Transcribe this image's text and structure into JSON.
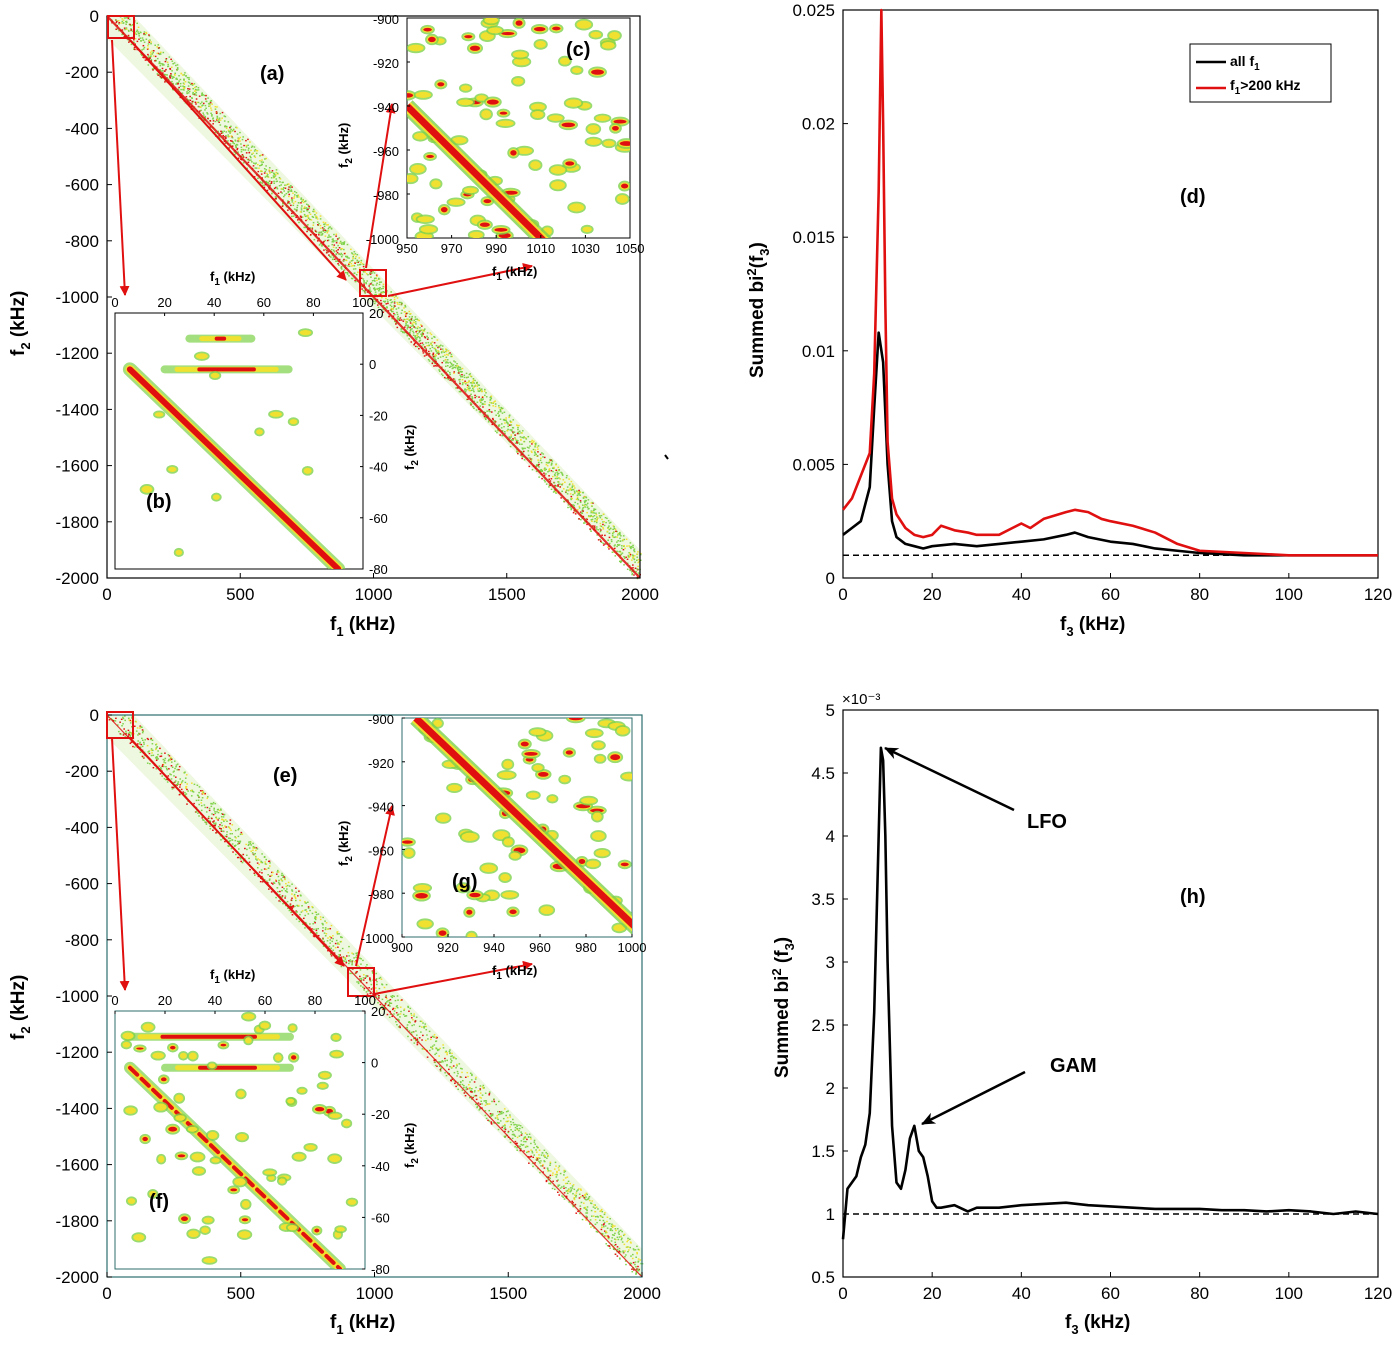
{
  "colors": {
    "red": "#e01010",
    "green": "#7ed24a",
    "yellow": "#f0e030",
    "black": "#000000",
    "teal_frame": "#2c6e6e"
  },
  "chart_data": [
    {
      "id": "top_bicoherence",
      "type": "heatmap",
      "panel_label": "(a)",
      "xlabel": "f1 (kHz)",
      "ylabel": "f2 (kHz)",
      "xlim": [
        0,
        2000
      ],
      "ylim": [
        -2000,
        0
      ],
      "xticks": [
        "0",
        "500",
        "1000",
        "1500",
        "2000"
      ],
      "yticks": [
        "0",
        "-200",
        "-400",
        "-600",
        "-800",
        "-1000",
        "-1200",
        "-1400",
        "-1600",
        "-1800",
        "-2000"
      ],
      "description_values": {
        "band_line": "f2 = -f1"
      },
      "insets": [
        {
          "panel_label": "(b)",
          "xlabel": "f1 (kHz)",
          "ylabel": "f2 (kHz)",
          "xlim": [
            0,
            100
          ],
          "ylim": [
            -80,
            20
          ],
          "xticks": [
            "0",
            "20",
            "40",
            "60",
            "80",
            "100"
          ],
          "yticks": [
            "20",
            "0",
            "-20",
            "-40",
            "-60",
            "-80"
          ]
        },
        {
          "panel_label": "(c)",
          "xlabel": "f1 (kHz)",
          "ylabel": "f2 (kHz)",
          "xlim": [
            950,
            1050
          ],
          "ylim": [
            -1000,
            -900
          ],
          "xticks": [
            "950",
            "970",
            "990",
            "1010",
            "1030",
            "1050"
          ],
          "yticks": [
            "-900",
            "-920",
            "-940",
            "-960",
            "-980",
            "-1000"
          ]
        }
      ]
    },
    {
      "id": "top_summed",
      "type": "line",
      "panel_label": "(d)",
      "xlabel": "f3 (kHz)",
      "ylabel": "Summed bi2(f3)",
      "xlim": [
        0,
        120
      ],
      "ylim": [
        0,
        0.025
      ],
      "xticks": [
        "0",
        "20",
        "40",
        "60",
        "80",
        "100",
        "120"
      ],
      "yticks": [
        "0",
        "0.005",
        "0.01",
        "0.015",
        "0.02",
        "0.025"
      ],
      "baseline": 0.001,
      "legend_position": "top-right",
      "series": [
        {
          "name": "all f1",
          "color": "#000000",
          "x": [
            0,
            2,
            4,
            6,
            7,
            8,
            9,
            10,
            11,
            12,
            14,
            16,
            18,
            20,
            25,
            30,
            35,
            40,
            45,
            50,
            52,
            55,
            60,
            65,
            70,
            75,
            80,
            90,
            100,
            110,
            120
          ],
          "y": [
            0.0019,
            0.0022,
            0.0025,
            0.004,
            0.0075,
            0.0108,
            0.0095,
            0.005,
            0.0025,
            0.0018,
            0.0015,
            0.0014,
            0.0013,
            0.0014,
            0.0015,
            0.0014,
            0.0015,
            0.0016,
            0.0017,
            0.0019,
            0.002,
            0.0018,
            0.0016,
            0.0015,
            0.0013,
            0.0012,
            0.0011,
            0.001,
            0.001,
            0.001,
            0.001
          ]
        },
        {
          "name": "f1>200 kHz",
          "color": "#e01010",
          "x": [
            0,
            2,
            4,
            6,
            7,
            8,
            8.6,
            9,
            9.5,
            10,
            11,
            12,
            14,
            16,
            18,
            20,
            22,
            25,
            28,
            30,
            35,
            38,
            40,
            42,
            45,
            50,
            52,
            55,
            58,
            60,
            65,
            70,
            75,
            80,
            90,
            100,
            110,
            120
          ],
          "y": [
            0.003,
            0.0035,
            0.0045,
            0.0055,
            0.009,
            0.017,
            0.025,
            0.02,
            0.012,
            0.006,
            0.0035,
            0.0028,
            0.0022,
            0.0019,
            0.0018,
            0.0019,
            0.0023,
            0.0021,
            0.002,
            0.0019,
            0.0019,
            0.0022,
            0.0024,
            0.0022,
            0.0026,
            0.0029,
            0.003,
            0.0029,
            0.0026,
            0.0025,
            0.0023,
            0.002,
            0.0015,
            0.0012,
            0.0011,
            0.001,
            0.001,
            0.001
          ]
        }
      ]
    },
    {
      "id": "bottom_bicoherence",
      "type": "heatmap",
      "panel_label": "(e)",
      "xlabel": "f1 (kHz)",
      "ylabel": "f2 (kHz)",
      "xlim": [
        0,
        2000
      ],
      "ylim": [
        -2000,
        0
      ],
      "xticks": [
        "0",
        "500",
        "1000",
        "1500",
        "2000"
      ],
      "yticks": [
        "0",
        "-200",
        "-400",
        "-600",
        "-800",
        "-1000",
        "-1200",
        "-1400",
        "-1600",
        "-1800",
        "-2000"
      ],
      "insets": [
        {
          "panel_label": "(f)",
          "xlabel": "f1 (kHz)",
          "ylabel": "f2 (kHz)",
          "xlim": [
            0,
            100
          ],
          "ylim": [
            -80,
            20
          ],
          "xticks": [
            "0",
            "20",
            "40",
            "60",
            "80",
            "100"
          ],
          "yticks": [
            "20",
            "0",
            "-20",
            "-40",
            "-60",
            "-80"
          ]
        },
        {
          "panel_label": "(g)",
          "xlabel": "f1 (kHz)",
          "ylabel": "f2 (kHz)",
          "xlim": [
            900,
            1000
          ],
          "ylim": [
            -1000,
            -900
          ],
          "xticks": [
            "900",
            "920",
            "940",
            "960",
            "980",
            "1000"
          ],
          "yticks": [
            "-900",
            "-920",
            "-940",
            "-960",
            "-980",
            "-1000"
          ]
        }
      ]
    },
    {
      "id": "bottom_summed",
      "type": "line",
      "panel_label": "(h)",
      "xlabel": "f3 (kHz)",
      "ylabel": "Summed bi2 (f3)",
      "scale_label": "×10⁻³",
      "xlim": [
        0,
        120
      ],
      "ylim": [
        0.5,
        5
      ],
      "xticks": [
        "0",
        "20",
        "40",
        "60",
        "80",
        "100",
        "120"
      ],
      "yticks": [
        "0.5",
        "1",
        "1.5",
        "2",
        "2.5",
        "3",
        "3.5",
        "4",
        "4.5",
        "5"
      ],
      "baseline": 1,
      "annotations": [
        {
          "text": "LFO",
          "x": 9,
          "y": 4.7
        },
        {
          "text": "GAM",
          "x": 16,
          "y": 1.7
        }
      ],
      "series": [
        {
          "name": "",
          "color": "#000000",
          "x": [
            0,
            0.5,
            1,
            2,
            3,
            4,
            5,
            6,
            7,
            8,
            8.5,
            9,
            9.5,
            10,
            11,
            12,
            13,
            14,
            15,
            16,
            17,
            18,
            19,
            20,
            21,
            22,
            25,
            28,
            30,
            35,
            40,
            45,
            50,
            55,
            60,
            65,
            70,
            75,
            80,
            85,
            90,
            95,
            100,
            105,
            110,
            115,
            120
          ],
          "y": [
            0.8,
            1.0,
            1.2,
            1.25,
            1.3,
            1.45,
            1.55,
            1.8,
            2.6,
            4.0,
            4.7,
            4.6,
            4.0,
            3.0,
            1.7,
            1.25,
            1.2,
            1.35,
            1.6,
            1.7,
            1.5,
            1.45,
            1.3,
            1.1,
            1.05,
            1.05,
            1.07,
            1.02,
            1.05,
            1.05,
            1.07,
            1.08,
            1.09,
            1.07,
            1.06,
            1.05,
            1.04,
            1.04,
            1.04,
            1.03,
            1.03,
            1.02,
            1.03,
            1.02,
            1.0,
            1.02,
            1.0
          ]
        }
      ]
    }
  ],
  "legend": {
    "entry1_main": "all f",
    "entry1_sub": "1",
    "entry2_main": "f",
    "entry2_sub": "1",
    "entry2_rest": ">200 kHz"
  },
  "text": {
    "a": "(a)",
    "b": "(b)",
    "c": "(c)",
    "d": "(d)",
    "e": "(e)",
    "f": "(f)",
    "g": "(g)",
    "h": "(h)",
    "f1_main": "f",
    "f1_sub": "1",
    "f1_unit": " (kHz)",
    "f2_main": "f",
    "f2_sub": "2",
    "f2_unit": " (kHz)",
    "f3_main": "f",
    "f3_sub": "3",
    "f3_unit": " (kHz)",
    "summed_d_main": "Summed bi",
    "summed_d_sup": "2",
    "summed_d_mid": "(f",
    "summed_d_sub": "3",
    "summed_d_end": ")",
    "summed_h_main": "Summed bi",
    "summed_h_sup": "2",
    "summed_h_mid": " (f",
    "summed_h_sub": "3",
    "summed_h_end": ")",
    "scale": "×10⁻³",
    "lfo": "LFO",
    "gam": "GAM"
  }
}
